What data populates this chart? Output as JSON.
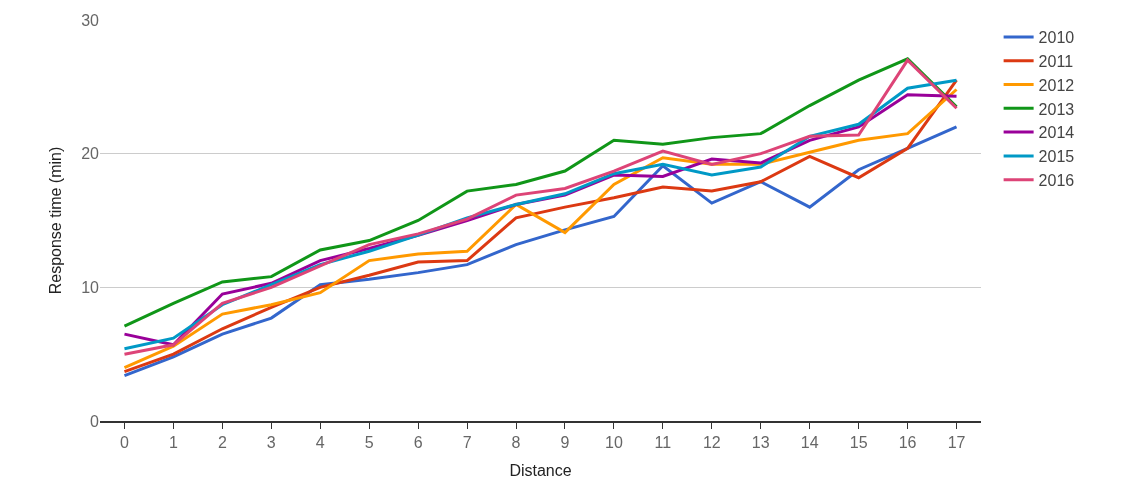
{
  "chart_data": {
    "type": "line",
    "xlabel": "Distance",
    "ylabel": "Response time (min)",
    "x": [
      0,
      1,
      2,
      3,
      4,
      5,
      6,
      7,
      8,
      9,
      10,
      11,
      12,
      13,
      14,
      15,
      16,
      17
    ],
    "xlim": [
      -0.5,
      17.5
    ],
    "xticks": [
      0,
      1,
      2,
      3,
      4,
      5,
      6,
      7,
      8,
      9,
      10,
      11,
      12,
      13,
      14,
      15,
      16,
      17
    ],
    "ylim": [
      0,
      30
    ],
    "yticks": [
      0,
      10,
      20,
      30
    ],
    "grid": "y",
    "legend": "top right",
    "marker": "none",
    "line_style": "solid",
    "series": [
      {
        "name": "2010",
        "color": "#3366cc",
        "values": [
          3.4,
          4.8,
          6.5,
          7.7,
          10.2,
          10.6,
          11.1,
          11.7,
          13.2,
          14.3,
          15.3,
          19.1,
          16.3,
          17.9,
          16.0,
          18.8,
          20.4,
          22.0
        ]
      },
      {
        "name": "2011",
        "color": "#dc3912",
        "values": [
          3.7,
          5.0,
          6.9,
          8.5,
          10.0,
          10.9,
          11.9,
          12.0,
          15.2,
          16.0,
          16.7,
          17.5,
          17.2,
          17.9,
          19.8,
          18.2,
          20.4,
          25.5
        ]
      },
      {
        "name": "2012",
        "color": "#ff9900",
        "values": [
          4.0,
          5.6,
          8.0,
          8.7,
          9.6,
          12.0,
          12.5,
          12.7,
          16.2,
          14.1,
          17.7,
          19.7,
          19.2,
          19.2,
          20.1,
          21.0,
          21.5,
          24.8
        ]
      },
      {
        "name": "2013",
        "color": "#109618",
        "values": [
          7.1,
          8.8,
          10.4,
          10.8,
          12.8,
          13.5,
          15.0,
          17.2,
          17.7,
          18.7,
          21.0,
          20.7,
          21.2,
          21.5,
          23.6,
          25.5,
          27.1,
          23.5
        ]
      },
      {
        "name": "2014",
        "color": "#990099",
        "values": [
          6.5,
          5.7,
          9.5,
          10.3,
          12.0,
          12.9,
          13.9,
          15.0,
          16.2,
          16.9,
          18.4,
          18.3,
          19.6,
          19.3,
          21.0,
          22.0,
          24.4,
          24.3
        ]
      },
      {
        "name": "2015",
        "color": "#0099c6",
        "values": [
          5.4,
          6.2,
          8.7,
          10.2,
          11.7,
          12.7,
          13.9,
          15.2,
          16.2,
          17.0,
          18.5,
          19.2,
          18.4,
          19.0,
          21.3,
          22.2,
          24.9,
          25.5
        ]
      },
      {
        "name": "2016",
        "color": "#dd4477",
        "values": [
          5.0,
          5.7,
          8.8,
          10.0,
          11.6,
          13.2,
          14.0,
          15.1,
          16.9,
          17.4,
          18.7,
          20.2,
          19.2,
          20.0,
          21.3,
          21.4,
          27.0,
          23.4
        ]
      }
    ]
  }
}
